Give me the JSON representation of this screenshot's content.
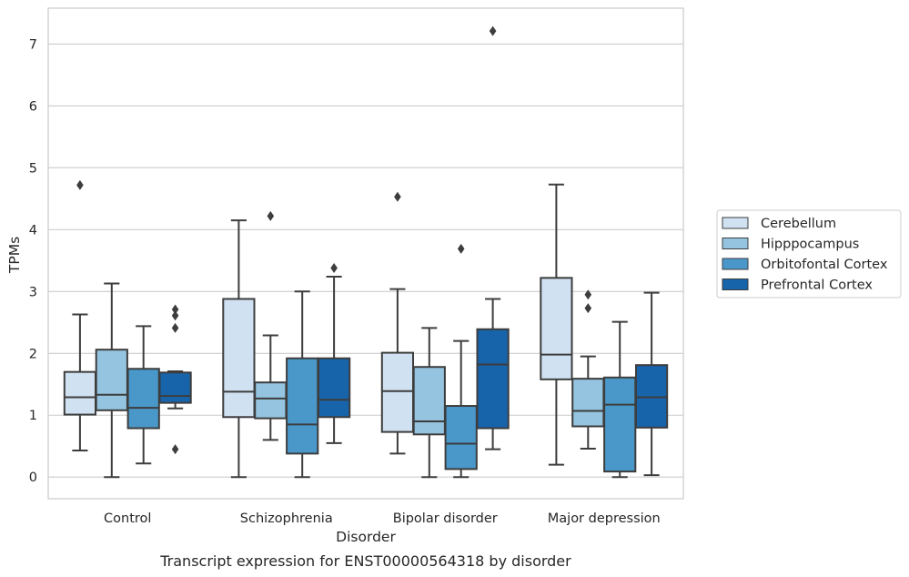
{
  "chart_data": {
    "type": "box",
    "caption": "Transcript expression for ENST00000564318 by disorder",
    "xlabel": "Disorder",
    "ylabel": "TPMs",
    "ylim": [
      -0.35,
      7.58
    ],
    "yticks": [
      0,
      1,
      2,
      3,
      4,
      5,
      6,
      7
    ],
    "grid": "horizontal",
    "legend_position": "right",
    "categories": [
      "Control",
      "Schizophrenia",
      "Bipolar disorder",
      "Major depression"
    ],
    "series": [
      {
        "name": "Cerebellum",
        "color": "#d0e1f2",
        "boxes": [
          {
            "whislo": 0.43,
            "q1": 1.01,
            "med": 1.29,
            "q3": 1.7,
            "whishi": 2.63,
            "fliers": [
              4.72
            ]
          },
          {
            "whislo": 0.0,
            "q1": 0.97,
            "med": 1.38,
            "q3": 2.88,
            "whishi": 4.15,
            "fliers": []
          },
          {
            "whislo": 0.38,
            "q1": 0.73,
            "med": 1.39,
            "q3": 2.01,
            "whishi": 3.04,
            "fliers": [
              4.53
            ]
          },
          {
            "whislo": 0.2,
            "q1": 1.58,
            "med": 1.98,
            "q3": 3.22,
            "whishi": 4.73,
            "fliers": []
          }
        ]
      },
      {
        "name": "Hipppocampus",
        "color": "#94c4df",
        "boxes": [
          {
            "whislo": 0.0,
            "q1": 1.08,
            "med": 1.33,
            "q3": 2.06,
            "whishi": 3.13,
            "fliers": []
          },
          {
            "whislo": 0.6,
            "q1": 0.95,
            "med": 1.27,
            "q3": 1.53,
            "whishi": 2.29,
            "fliers": [
              4.22
            ]
          },
          {
            "whislo": 0.0,
            "q1": 0.69,
            "med": 0.9,
            "q3": 1.78,
            "whishi": 2.41,
            "fliers": []
          },
          {
            "whislo": 0.46,
            "q1": 0.82,
            "med": 1.07,
            "q3": 1.59,
            "whishi": 1.95,
            "fliers": [
              2.73,
              2.95
            ]
          }
        ]
      },
      {
        "name": "Orbitofontal Cortex",
        "color": "#4a98c9",
        "boxes": [
          {
            "whislo": 0.22,
            "q1": 0.79,
            "med": 1.12,
            "q3": 1.75,
            "whishi": 2.44,
            "fliers": []
          },
          {
            "whislo": 0.0,
            "q1": 0.38,
            "med": 0.85,
            "q3": 1.92,
            "whishi": 3.0,
            "fliers": []
          },
          {
            "whislo": 0.0,
            "q1": 0.13,
            "med": 0.54,
            "q3": 1.15,
            "whishi": 2.2,
            "fliers": [
              3.69
            ]
          },
          {
            "whislo": 0.0,
            "q1": 0.09,
            "med": 1.17,
            "q3": 1.61,
            "whishi": 2.51,
            "fliers": []
          }
        ]
      },
      {
        "name": "Prefrontal Cortex",
        "color": "#1764ab",
        "boxes": [
          {
            "whislo": 1.11,
            "q1": 1.2,
            "med": 1.31,
            "q3": 1.69,
            "whishi": 1.71,
            "fliers": [
              0.45,
              2.41,
              2.61,
              2.71
            ]
          },
          {
            "whislo": 0.55,
            "q1": 0.97,
            "med": 1.25,
            "q3": 1.92,
            "whishi": 3.24,
            "fliers": [
              3.38
            ]
          },
          {
            "whislo": 0.45,
            "q1": 0.79,
            "med": 1.82,
            "q3": 2.39,
            "whishi": 2.88,
            "fliers": [
              7.21
            ]
          },
          {
            "whislo": 0.03,
            "q1": 0.8,
            "med": 1.29,
            "q3": 1.81,
            "whishi": 2.98,
            "fliers": []
          }
        ]
      }
    ]
  }
}
